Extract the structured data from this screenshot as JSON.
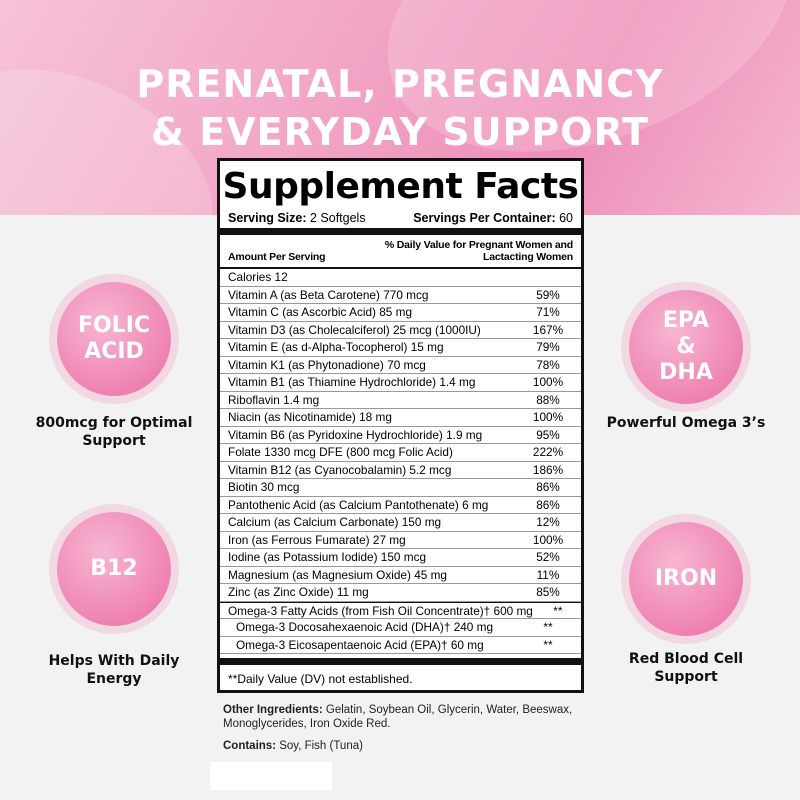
{
  "headline": {
    "line1": "PRENATAL, PREGNANCY",
    "line2": "& EVERYDAY SUPPORT"
  },
  "facts": {
    "title": "Supplement Facts",
    "serving_size_label": "Serving Size:",
    "serving_size": "2 Softgels",
    "servings_label": "Servings Per Container:",
    "servings": "60",
    "col_amount": "Amount Per Serving",
    "col_dv": "% Daily Value for Pregnant Women and Lactacting Women",
    "rows": [
      {
        "name": "Calories 12",
        "dv": ""
      },
      {
        "name": "Vitamin A (as Beta Carotene) 770 mcg",
        "dv": "59%"
      },
      {
        "name": "Vitamin C (as Ascorbic Acid) 85 mg",
        "dv": "71%"
      },
      {
        "name": "Vitamin D3 (as Cholecalciferol) 25 mcg (1000IU)",
        "dv": "167%"
      },
      {
        "name": "Vitamin E (as d-Alpha-Tocopherol) 15 mg",
        "dv": "79%"
      },
      {
        "name": "Vitamin K1 (as Phytonadione) 70 mcg",
        "dv": "78%"
      },
      {
        "name": "Vitamin B1 (as Thiamine Hydrochloride) 1.4 mg",
        "dv": "100%"
      },
      {
        "name": "Riboflavin 1.4 mg",
        "dv": "88%"
      },
      {
        "name": "Niacin (as Nicotinamide) 18 mg",
        "dv": "100%"
      },
      {
        "name": "Vitamin B6 (as Pyridoxine Hydrochloride) 1.9 mg",
        "dv": "95%"
      },
      {
        "name": "Folate 1330 mcg DFE (800 mcg Folic Acid)",
        "dv": "222%"
      },
      {
        "name": "Vitamin B12 (as Cyanocobalamin) 5.2 mcg",
        "dv": "186%"
      },
      {
        "name": "Biotin 30 mcg",
        "dv": "86%"
      },
      {
        "name": "Pantothenic Acid (as Calcium Pantothenate) 6 mg",
        "dv": "86%"
      },
      {
        "name": "Calcium (as Calcium Carbonate) 150 mg",
        "dv": "12%"
      },
      {
        "name": "Iron (as Ferrous Fumarate) 27 mg",
        "dv": "100%"
      },
      {
        "name": "Iodine (as Potassium Iodide) 150 mcg",
        "dv": "52%"
      },
      {
        "name": "Magnesium (as Magnesium Oxide) 45 mg",
        "dv": "11%"
      },
      {
        "name": "Zinc (as Zinc Oxide) 11 mg",
        "dv": "85%"
      },
      {
        "name": "Omega-3 Fatty Acids (from Fish Oil Concentrate)† 600 mg",
        "dv": "**"
      },
      {
        "name": "Omega-3 Docosahexaenoic Acid (DHA)† 240 mg",
        "dv": "**"
      },
      {
        "name": "Omega-3 Eicosapentaenoic Acid (EPA)† 60 mg",
        "dv": "**"
      }
    ],
    "footnote": "**Daily Value (DV) not established."
  },
  "other_label": "Other Ingredients:",
  "other": "Gelatin, Soybean Oil, Glycerin, Water, Beeswax, Monoglycerides, Iron Oxide Red.",
  "contains_label": "Contains:",
  "contains": "Soy, Fish (Tuna)",
  "badges": [
    {
      "title": "FOLIC ACID",
      "caption": "800mcg for Optimal Support"
    },
    {
      "title": "B12",
      "caption": "Helps With Daily Energy"
    },
    {
      "title": "EPA & DHA",
      "caption": "Powerful Omega 3’s"
    },
    {
      "title": "IRON",
      "caption": "Red Blood Cell Support"
    }
  ]
}
